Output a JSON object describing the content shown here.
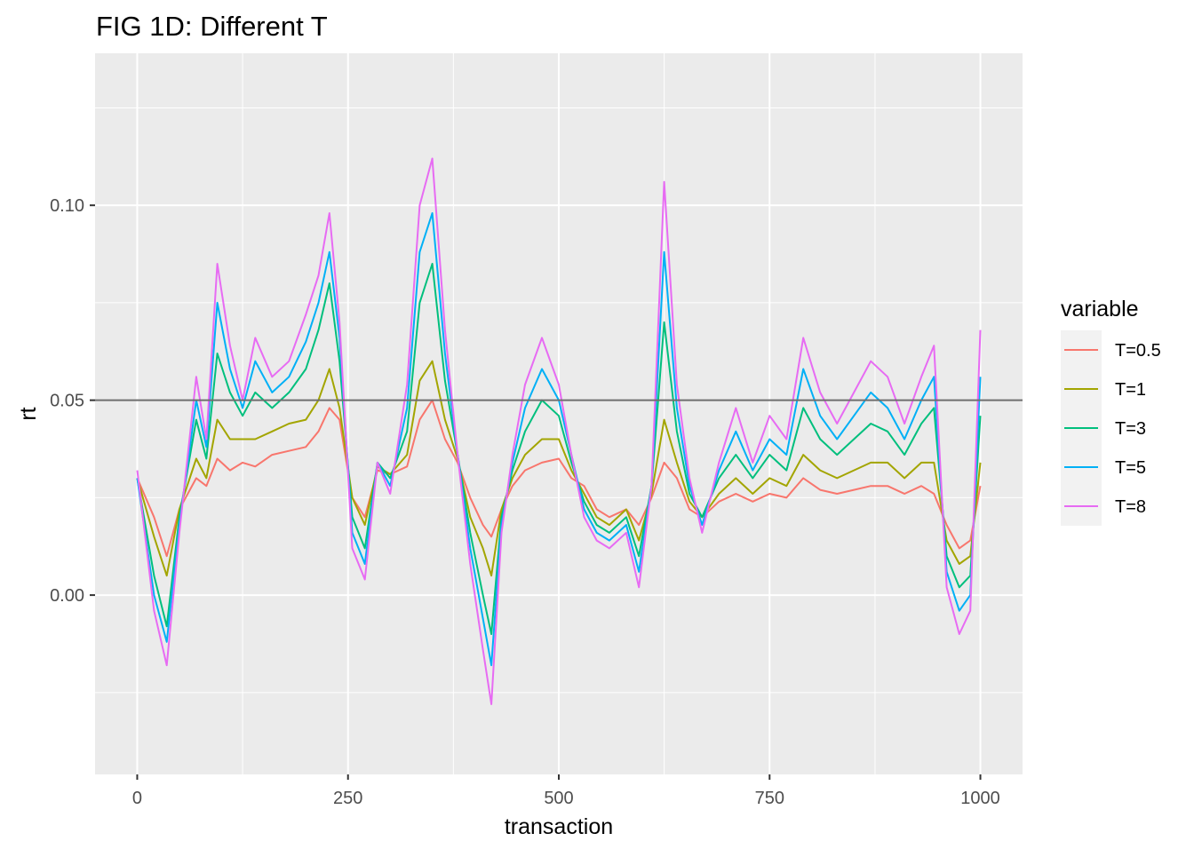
{
  "chart_data": {
    "type": "line",
    "title": "FIG 1D: Different T",
    "xlabel": "transaction",
    "ylabel": "rt",
    "xlim": [
      -50,
      1050
    ],
    "ylim": [
      -0.046,
      0.139
    ],
    "x_ticks": [
      0,
      250,
      500,
      750,
      1000
    ],
    "x_tick_labels": [
      "0",
      "250",
      "500",
      "750",
      "1000"
    ],
    "y_ticks": [
      0.0,
      0.05,
      0.1
    ],
    "y_tick_labels": [
      "0.00",
      "0.05",
      "0.10"
    ],
    "hline": 0.05,
    "grid": true,
    "panel_background": "#ebebeb",
    "legend": {
      "title": "variable",
      "position": "right"
    },
    "x": [
      0,
      20,
      35,
      50,
      70,
      82,
      95,
      110,
      125,
      140,
      160,
      180,
      200,
      215,
      228,
      240,
      255,
      270,
      285,
      300,
      320,
      335,
      350,
      365,
      380,
      395,
      410,
      420,
      432,
      445,
      460,
      480,
      500,
      515,
      530,
      545,
      560,
      580,
      595,
      610,
      625,
      640,
      655,
      670,
      690,
      710,
      730,
      750,
      770,
      790,
      810,
      830,
      850,
      870,
      890,
      910,
      930,
      945,
      960,
      975,
      988,
      1000
    ],
    "series": [
      {
        "name": "T=0.5",
        "color": "#f8766d",
        "values": [
          0.03,
          0.02,
          0.01,
          0.022,
          0.03,
          0.028,
          0.035,
          0.032,
          0.034,
          0.033,
          0.036,
          0.037,
          0.038,
          0.042,
          0.048,
          0.045,
          0.025,
          0.02,
          0.032,
          0.031,
          0.033,
          0.045,
          0.05,
          0.04,
          0.034,
          0.025,
          0.018,
          0.015,
          0.022,
          0.028,
          0.032,
          0.034,
          0.035,
          0.03,
          0.028,
          0.022,
          0.02,
          0.022,
          0.018,
          0.025,
          0.034,
          0.03,
          0.022,
          0.02,
          0.024,
          0.026,
          0.024,
          0.026,
          0.025,
          0.03,
          0.027,
          0.026,
          0.027,
          0.028,
          0.028,
          0.026,
          0.028,
          0.026,
          0.018,
          0.012,
          0.014,
          0.028
        ]
      },
      {
        "name": "T=1",
        "color": "#a3a500",
        "values": [
          0.03,
          0.015,
          0.005,
          0.022,
          0.035,
          0.03,
          0.045,
          0.04,
          0.04,
          0.04,
          0.042,
          0.044,
          0.045,
          0.05,
          0.058,
          0.048,
          0.025,
          0.018,
          0.033,
          0.031,
          0.036,
          0.055,
          0.06,
          0.045,
          0.035,
          0.02,
          0.012,
          0.005,
          0.022,
          0.03,
          0.036,
          0.04,
          0.04,
          0.032,
          0.026,
          0.02,
          0.018,
          0.022,
          0.014,
          0.026,
          0.045,
          0.034,
          0.024,
          0.02,
          0.026,
          0.03,
          0.026,
          0.03,
          0.028,
          0.036,
          0.032,
          0.03,
          0.032,
          0.034,
          0.034,
          0.03,
          0.034,
          0.034,
          0.014,
          0.008,
          0.01,
          0.034
        ]
      },
      {
        "name": "T=3",
        "color": "#00bf7d",
        "values": [
          0.03,
          0.005,
          -0.008,
          0.02,
          0.045,
          0.035,
          0.062,
          0.052,
          0.046,
          0.052,
          0.048,
          0.052,
          0.058,
          0.068,
          0.08,
          0.06,
          0.02,
          0.012,
          0.034,
          0.03,
          0.042,
          0.075,
          0.085,
          0.055,
          0.036,
          0.016,
          0.0,
          -0.01,
          0.02,
          0.032,
          0.042,
          0.05,
          0.046,
          0.034,
          0.024,
          0.018,
          0.016,
          0.02,
          0.01,
          0.028,
          0.07,
          0.042,
          0.026,
          0.02,
          0.03,
          0.036,
          0.03,
          0.036,
          0.032,
          0.048,
          0.04,
          0.036,
          0.04,
          0.044,
          0.042,
          0.036,
          0.044,
          0.048,
          0.01,
          0.002,
          0.005,
          0.046
        ]
      },
      {
        "name": "T=5",
        "color": "#00b0f6",
        "values": [
          0.03,
          0.0,
          -0.012,
          0.018,
          0.05,
          0.038,
          0.075,
          0.058,
          0.048,
          0.06,
          0.052,
          0.056,
          0.065,
          0.075,
          0.088,
          0.066,
          0.016,
          0.008,
          0.034,
          0.028,
          0.048,
          0.088,
          0.098,
          0.062,
          0.036,
          0.012,
          -0.006,
          -0.018,
          0.018,
          0.034,
          0.048,
          0.058,
          0.05,
          0.036,
          0.022,
          0.016,
          0.014,
          0.018,
          0.006,
          0.028,
          0.088,
          0.048,
          0.028,
          0.018,
          0.032,
          0.042,
          0.032,
          0.04,
          0.036,
          0.058,
          0.046,
          0.04,
          0.046,
          0.052,
          0.048,
          0.04,
          0.05,
          0.056,
          0.006,
          -0.004,
          0.0,
          0.056
        ]
      },
      {
        "name": "T=8",
        "color": "#e76bf3",
        "values": [
          0.032,
          -0.004,
          -0.018,
          0.016,
          0.056,
          0.04,
          0.085,
          0.064,
          0.05,
          0.066,
          0.056,
          0.06,
          0.072,
          0.082,
          0.098,
          0.07,
          0.012,
          0.004,
          0.034,
          0.026,
          0.054,
          0.1,
          0.112,
          0.068,
          0.036,
          0.008,
          -0.014,
          -0.028,
          0.016,
          0.036,
          0.054,
          0.066,
          0.054,
          0.036,
          0.02,
          0.014,
          0.012,
          0.016,
          0.002,
          0.028,
          0.106,
          0.054,
          0.03,
          0.016,
          0.034,
          0.048,
          0.034,
          0.046,
          0.04,
          0.066,
          0.052,
          0.044,
          0.052,
          0.06,
          0.056,
          0.044,
          0.056,
          0.064,
          0.002,
          -0.01,
          -0.004,
          0.068
        ]
      }
    ]
  }
}
